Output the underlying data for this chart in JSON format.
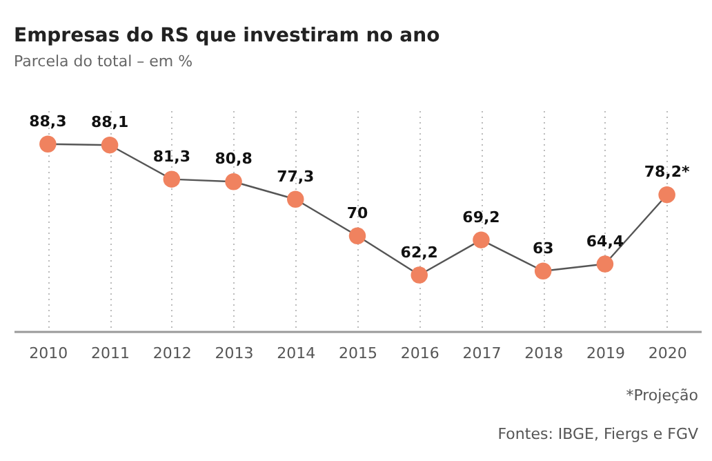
{
  "chart_data": {
    "type": "line",
    "title": "Empresas do RS que investiram no ano",
    "subtitle": "Parcela do total – em %",
    "categories": [
      "2010",
      "2011",
      "2012",
      "2013",
      "2014",
      "2015",
      "2016",
      "2017",
      "2018",
      "2019",
      "2020"
    ],
    "series": [
      {
        "color": "#f0825f",
        "values": [
          88.3,
          88.1,
          81.3,
          80.8,
          77.3,
          70,
          62.2,
          69.2,
          63,
          64.4,
          78.2
        ],
        "value_labels": [
          "88,3",
          "88,1",
          "81,3",
          "80,8",
          "77,3",
          "70",
          "62,2",
          "69,2",
          "63",
          "64,4",
          "78,2*"
        ]
      }
    ],
    "ylim": [
      51,
      95
    ],
    "grid": "x",
    "marker": "circle",
    "tick_labels": "x",
    "annotations": [
      "*Projeção",
      "Fontes: IBGE, Fiergs e FGV"
    ]
  }
}
